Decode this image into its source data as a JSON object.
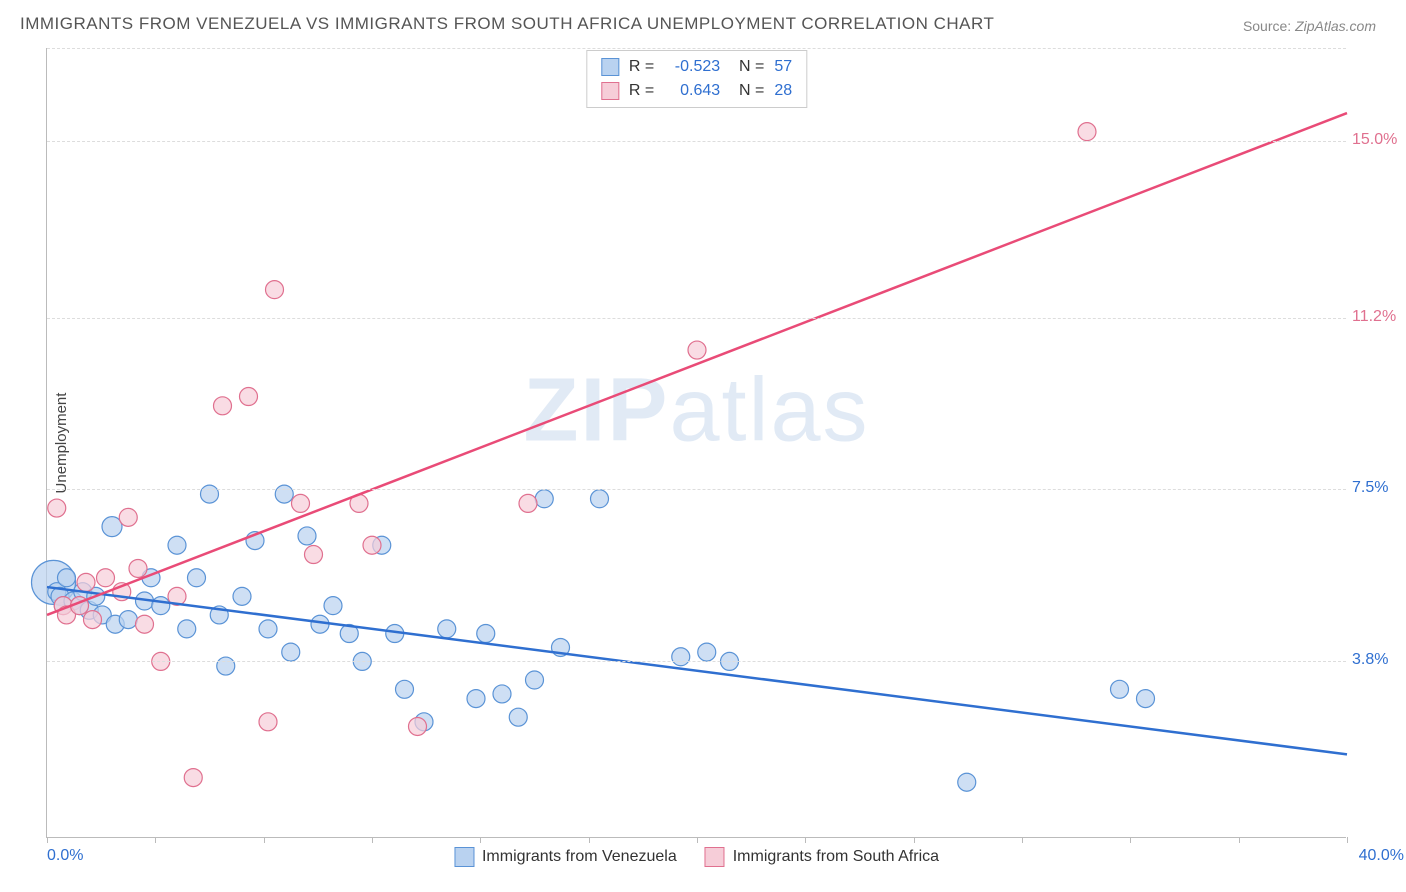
{
  "title": "IMMIGRANTS FROM VENEZUELA VS IMMIGRANTS FROM SOUTH AFRICA UNEMPLOYMENT CORRELATION CHART",
  "source_label": "Source:",
  "source_value": "ZipAtlas.com",
  "watermark": {
    "part1": "ZIP",
    "part2": "atlas"
  },
  "ylabel": "Unemployment",
  "chart": {
    "type": "scatter",
    "xlim": [
      0,
      40
    ],
    "ylim": [
      0,
      17
    ],
    "background_color": "#ffffff",
    "grid_color": "#dddddd",
    "axis_color": "#bbbbbb",
    "x_ticks_minor": [
      0,
      3.33,
      6.67,
      10,
      13.33,
      16.67,
      20,
      23.33,
      26.67,
      30,
      33.33,
      36.67,
      40
    ],
    "x_tick_labels": {
      "min": "0.0%",
      "max": "40.0%",
      "color": "#2f6fd0"
    },
    "y_gridlines": [
      {
        "y": 3.8,
        "label": "3.8%",
        "color": "#2f6fd0"
      },
      {
        "y": 7.5,
        "label": "7.5%",
        "color": "#2f6fd0"
      },
      {
        "y": 11.2,
        "label": "11.2%",
        "color": "#e0708f"
      },
      {
        "y": 15.0,
        "label": "15.0%",
        "color": "#e0708f"
      }
    ],
    "series": [
      {
        "name": "Immigrants from Venezuela",
        "marker_fill": "#b9d2f0",
        "marker_stroke": "#5a93d6",
        "marker_radius": 9,
        "line_color": "#2f6fd0",
        "line_width": 2.5,
        "regression": {
          "x0": 0,
          "y0": 5.4,
          "x1": 40,
          "y1": 1.8
        },
        "R": "-0.523",
        "N": "57",
        "points": [
          [
            0.2,
            5.5,
            22
          ],
          [
            0.3,
            5.3
          ],
          [
            0.4,
            5.2
          ],
          [
            0.5,
            5.0
          ],
          [
            0.6,
            5.6
          ],
          [
            0.8,
            5.1
          ],
          [
            1.0,
            5.0
          ],
          [
            1.1,
            5.3
          ],
          [
            1.3,
            4.9
          ],
          [
            1.5,
            5.2
          ],
          [
            1.7,
            4.8
          ],
          [
            2.0,
            6.7,
            10
          ],
          [
            2.1,
            4.6
          ],
          [
            2.5,
            4.7
          ],
          [
            3.0,
            5.1
          ],
          [
            3.2,
            5.6
          ],
          [
            3.5,
            5.0
          ],
          [
            4.0,
            6.3
          ],
          [
            4.3,
            4.5
          ],
          [
            4.6,
            5.6
          ],
          [
            5.0,
            7.4
          ],
          [
            5.3,
            4.8
          ],
          [
            5.5,
            3.7
          ],
          [
            6.0,
            5.2
          ],
          [
            6.4,
            6.4
          ],
          [
            6.8,
            4.5
          ],
          [
            7.3,
            7.4
          ],
          [
            7.5,
            4.0
          ],
          [
            8.0,
            6.5
          ],
          [
            8.4,
            4.6
          ],
          [
            8.8,
            5.0
          ],
          [
            9.3,
            4.4
          ],
          [
            9.7,
            3.8
          ],
          [
            10.3,
            6.3
          ],
          [
            10.7,
            4.4
          ],
          [
            11.0,
            3.2
          ],
          [
            11.6,
            2.5
          ],
          [
            12.3,
            4.5
          ],
          [
            13.2,
            3.0
          ],
          [
            13.5,
            4.4
          ],
          [
            14.0,
            3.1
          ],
          [
            14.5,
            2.6
          ],
          [
            15.0,
            3.4
          ],
          [
            15.3,
            7.3
          ],
          [
            15.8,
            4.1
          ],
          [
            17.0,
            7.3
          ],
          [
            19.5,
            3.9
          ],
          [
            21.0,
            3.8
          ],
          [
            28.3,
            1.2
          ],
          [
            33.0,
            3.2
          ],
          [
            33.8,
            3.0
          ],
          [
            20.3,
            4.0
          ]
        ]
      },
      {
        "name": "Immigrants from South Africa",
        "marker_fill": "#f6cdd8",
        "marker_stroke": "#e0708f",
        "marker_radius": 9,
        "line_color": "#e94b77",
        "line_width": 2.5,
        "regression": {
          "x0": 0,
          "y0": 4.8,
          "x1": 40,
          "y1": 15.6
        },
        "R": "0.643",
        "N": "28",
        "points": [
          [
            0.3,
            7.1
          ],
          [
            0.5,
            5.0
          ],
          [
            0.6,
            4.8
          ],
          [
            1.0,
            5.0
          ],
          [
            1.2,
            5.5
          ],
          [
            1.4,
            4.7
          ],
          [
            1.8,
            5.6
          ],
          [
            2.3,
            5.3
          ],
          [
            2.5,
            6.9
          ],
          [
            2.8,
            5.8
          ],
          [
            3.0,
            4.6
          ],
          [
            3.5,
            3.8
          ],
          [
            4.0,
            5.2
          ],
          [
            4.5,
            1.3
          ],
          [
            5.4,
            9.3
          ],
          [
            6.2,
            9.5
          ],
          [
            6.8,
            2.5
          ],
          [
            7.0,
            11.8
          ],
          [
            7.8,
            7.2
          ],
          [
            8.2,
            6.1
          ],
          [
            9.6,
            7.2
          ],
          [
            10.0,
            6.3
          ],
          [
            11.4,
            2.4
          ],
          [
            14.8,
            7.2
          ],
          [
            20.0,
            10.5
          ],
          [
            32.0,
            15.2
          ]
        ]
      }
    ],
    "stats_label_color": "#333333",
    "stats_value_color": "#2f6fd0",
    "legend_swatches": [
      {
        "fill": "#b9d2f0",
        "stroke": "#5a93d6"
      },
      {
        "fill": "#f6cdd8",
        "stroke": "#e0708f"
      }
    ]
  }
}
